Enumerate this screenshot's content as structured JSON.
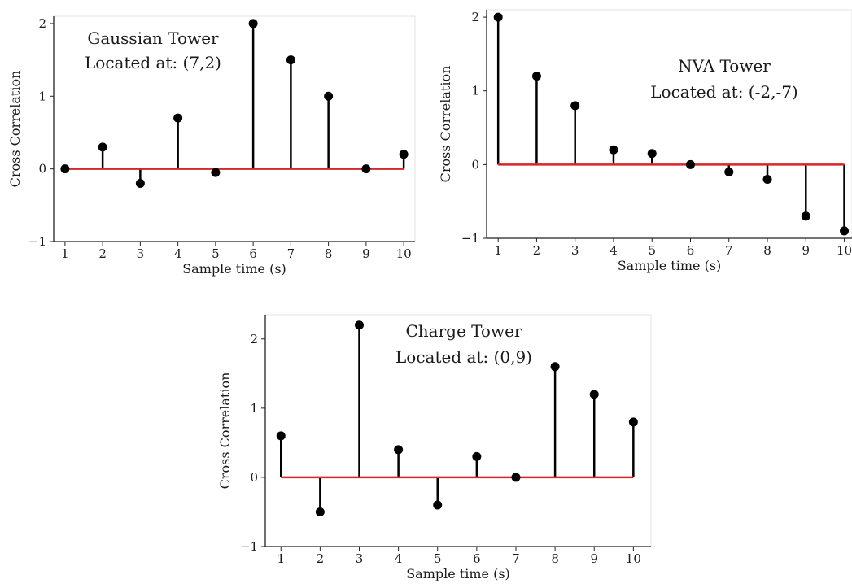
{
  "chart_data": [
    {
      "type": "stem",
      "annotation": [
        "Gaussian Tower",
        "Located at: (7,2)"
      ],
      "xlabel": "Sample time (s)",
      "ylabel": "Cross Correlation",
      "x": [
        1,
        2,
        3,
        4,
        5,
        6,
        7,
        8,
        9,
        10
      ],
      "values": [
        0,
        0.3,
        -0.2,
        0.7,
        -0.05,
        2.0,
        1.5,
        1.0,
        0,
        0.2
      ],
      "xticks": [
        "1",
        "2",
        "3",
        "4",
        "5",
        "6",
        "7",
        "8",
        "9",
        "10"
      ],
      "yticks": [
        "−1",
        "0",
        "1",
        "2"
      ],
      "xlim": [
        0.7,
        10.3
      ],
      "ylim": [
        -1,
        2.1
      ],
      "baseline_color": "#d62728",
      "stem_color": "#000000",
      "grid": false
    },
    {
      "type": "stem",
      "annotation": [
        "NVA Tower",
        "Located at: (-2,-7)"
      ],
      "xlabel": "Sample time (s)",
      "ylabel": "Cross Correlation",
      "x": [
        1,
        2,
        3,
        4,
        5,
        6,
        7,
        8,
        9,
        10
      ],
      "values": [
        2.0,
        1.2,
        0.8,
        0.2,
        0.15,
        0,
        -0.1,
        -0.2,
        -0.7,
        -0.9
      ],
      "xticks": [
        "1",
        "2",
        "3",
        "4",
        "5",
        "6",
        "7",
        "8",
        "9",
        "10"
      ],
      "yticks": [
        "−1",
        "0",
        "1",
        "2"
      ],
      "xlim": [
        0.7,
        10.2
      ],
      "ylim": [
        -1,
        2.1
      ],
      "baseline_color": "#d62728",
      "stem_color": "#000000",
      "grid": false
    },
    {
      "type": "stem",
      "annotation": [
        "Charge Tower",
        "Located at: (0,9)"
      ],
      "xlabel": "Sample time (s)",
      "ylabel": "Cross Correlation",
      "x": [
        1,
        2,
        3,
        4,
        5,
        6,
        7,
        8,
        9,
        10
      ],
      "values": [
        0.6,
        -0.5,
        2.2,
        0.4,
        -0.4,
        0.3,
        0,
        1.6,
        1.2,
        0.8
      ],
      "xticks": [
        "1",
        "2",
        "3",
        "4",
        "5",
        "6",
        "7",
        "8",
        "9",
        "10"
      ],
      "yticks": [
        "−1",
        "0",
        "1",
        "2"
      ],
      "xlim": [
        0.6,
        10.45
      ],
      "ylim": [
        -1,
        2.35
      ],
      "baseline_color": "#d62728",
      "stem_color": "#000000",
      "grid": false
    }
  ]
}
